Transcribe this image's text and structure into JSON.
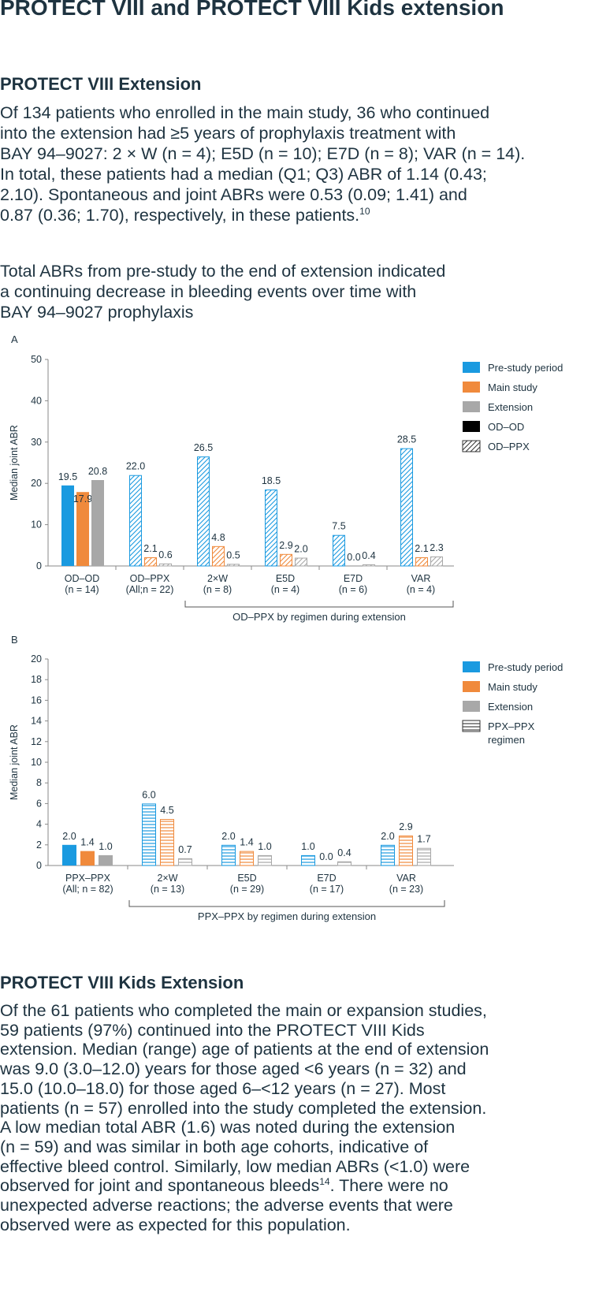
{
  "title": "PROTECT VIII and PROTECT VIII Kids extension",
  "section1": {
    "heading": "PROTECT VIII Extension",
    "lines": [
      "Of 134 patients who enrolled in the main study, 36 who continued",
      "into the extension had ≥5 years of prophylaxis treatment with",
      "BAY 94–9027: 2 × W (n = 4); E5D (n = 10); E7D (n = 8); VAR (n = 14).",
      "In total, these patients had a median (Q1; Q3) ABR of 1.14 (0.43;",
      "2.10). Spontaneous and joint ABRs were 0.53 (0.09; 1.41) and",
      "0.87 (0.36; 1.70), respectively, in these patients."
    ],
    "ref": "10"
  },
  "intro": {
    "lines": [
      "Total ABRs from pre-study to the end of extension indicated",
      "a continuing decrease in bleeding events over time with",
      "BAY 94–9027 prophylaxis"
    ]
  },
  "colors": {
    "pre": "#1a9ae0",
    "main": "#f08a3c",
    "ext": "#a8a8a8",
    "text": "#1e3340",
    "axis": "#8a8a8a"
  },
  "chart_data": [
    {
      "panel": "A",
      "type": "bar",
      "ylabel": "Median joint ABR",
      "ylim": [
        0,
        50
      ],
      "yticks": [
        0,
        10,
        20,
        30,
        40,
        50
      ],
      "categories": [
        {
          "label": "OD–OD",
          "sublabel": "(n = 14)"
        },
        {
          "label": "OD–PPX",
          "sublabel": "(All;n = 22)"
        },
        {
          "label": "2×W",
          "sublabel": "(n = 8)"
        },
        {
          "label": "E5D",
          "sublabel": "(n = 4)"
        },
        {
          "label": "E7D",
          "sublabel": "(n = 6)"
        },
        {
          "label": "VAR",
          "sublabel": "(n = 4)"
        }
      ],
      "category_patterns": [
        "solid",
        "diag",
        "diag",
        "diag",
        "diag",
        "diag"
      ],
      "series": [
        {
          "name": "Pre-study period",
          "color_key": "pre",
          "values": [
            19.5,
            22.0,
            26.5,
            18.5,
            7.5,
            28.5
          ],
          "labels": [
            "19.5",
            "22.0",
            "26.5",
            "18.5",
            "7.5",
            "28.5"
          ]
        },
        {
          "name": "Main study",
          "color_key": "main",
          "values": [
            17.9,
            2.1,
            4.8,
            2.9,
            0.0,
            2.1
          ],
          "labels": [
            "17.9",
            "2.1",
            "4.8",
            "2.9",
            "0.0",
            "2.1"
          ]
        },
        {
          "name": "Extension",
          "color_key": "ext",
          "values": [
            20.8,
            0.6,
            0.5,
            2.0,
            0.4,
            2.3
          ],
          "labels": [
            "20.8",
            "0.6",
            "0.5",
            "2.0",
            "0.4",
            "2.3"
          ]
        }
      ],
      "legend": [
        {
          "label": "Pre-study period",
          "swatch": "pre"
        },
        {
          "label": "Main study",
          "swatch": "main"
        },
        {
          "label": "Extension",
          "swatch": "ext"
        },
        {
          "label": "OD–OD",
          "swatch": "black"
        },
        {
          "label": "OD–PPX",
          "swatch": "diag"
        }
      ],
      "bracket_label": "OD–PPX by regimen during extension",
      "bracket_from": 2,
      "bracket_to": 5
    },
    {
      "panel": "B",
      "type": "bar",
      "ylabel": "Median joint ABR",
      "ylim": [
        0,
        20
      ],
      "yticks": [
        0,
        2,
        4,
        6,
        8,
        10,
        12,
        14,
        16,
        18,
        20
      ],
      "categories": [
        {
          "label": "PPX–PPX",
          "sublabel": "(All; n = 82)"
        },
        {
          "label": "2×W",
          "sublabel": "(n = 13)"
        },
        {
          "label": "E5D",
          "sublabel": "(n = 29)"
        },
        {
          "label": "E7D",
          "sublabel": "(n = 17)"
        },
        {
          "label": "VAR",
          "sublabel": "(n = 23)"
        }
      ],
      "category_patterns": [
        "solid",
        "horiz",
        "horiz",
        "horiz",
        "horiz"
      ],
      "series": [
        {
          "name": "Pre-study period",
          "color_key": "pre",
          "values": [
            2.0,
            6.0,
            2.0,
            1.0,
            2.0
          ],
          "labels": [
            "2.0",
            "6.0",
            "2.0",
            "1.0",
            "2.0"
          ]
        },
        {
          "name": "Main study",
          "color_key": "main",
          "values": [
            1.4,
            4.5,
            1.4,
            0.0,
            2.9
          ],
          "labels": [
            "1.4",
            "4.5",
            "1.4",
            "0.0",
            "2.9"
          ]
        },
        {
          "name": "Extension",
          "color_key": "ext",
          "values": [
            1.0,
            0.7,
            1.0,
            0.4,
            1.7
          ],
          "labels": [
            "1.0",
            "0.7",
            "1.0",
            "0.4",
            "1.7"
          ]
        }
      ],
      "legend": [
        {
          "label": "Pre-study period",
          "swatch": "pre"
        },
        {
          "label": "Main study",
          "swatch": "main"
        },
        {
          "label": "Extension",
          "swatch": "ext"
        },
        {
          "label": "PPX–PPX",
          "label2": "regimen",
          "swatch": "horiz"
        }
      ],
      "bracket_label": "PPX–PPX by regimen during extension",
      "bracket_from": 1,
      "bracket_to": 4
    }
  ],
  "section2": {
    "heading": "PROTECT VIII Kids Extension",
    "lines": [
      "Of the 61 patients who completed the main or expansion studies,",
      "59 patients (97%) continued into the PROTECT VIII Kids",
      "extension. Median (range) age of patients at the end of extension",
      "was 9.0 (3.0–12.0) years for those aged <6 years (n = 32) and",
      "15.0 (10.0–18.0) for those aged 6–<12 years (n = 27). Most",
      "patients (n = 57) enrolled into the study completed the extension.",
      "A low median total ABR (1.6) was noted during the extension",
      "(n = 59) and was similar in both age cohorts, indicative of",
      "effective bleed control. Similarly, low median ABRs (<1.0) were",
      "observed for joint and spontaneous bleeds",
      "unexpected adverse reactions; the adverse events that were",
      "observed were as expected for this population."
    ],
    "ref": "14",
    "line10_tail": ". There were no"
  }
}
